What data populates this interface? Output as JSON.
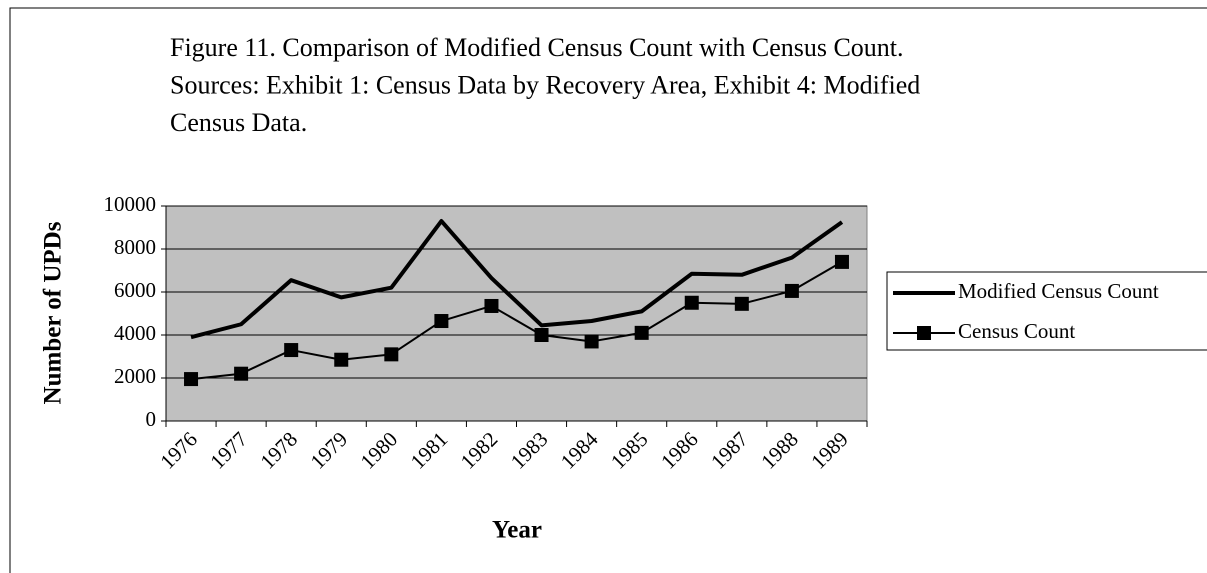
{
  "chart_data": {
    "type": "line",
    "title": [
      "Figure 11. Comparison of Modified Census Count with Census Count.",
      "Sources: Exhibit 1: Census Data by Recovery Area, Exhibit 4: Modified",
      "Census Data."
    ],
    "xlabel": "Year",
    "ylabel": "Number of UPDs",
    "categories": [
      "1976",
      "1977",
      "1978",
      "1979",
      "1980",
      "1981",
      "1982",
      "1983",
      "1984",
      "1985",
      "1986",
      "1987",
      "1988",
      "1989"
    ],
    "series": [
      {
        "name": "Modified Census Count",
        "color": "#000000",
        "marker": null,
        "values": [
          3900,
          4500,
          6550,
          5750,
          6200,
          9300,
          6650,
          4450,
          4650,
          5100,
          6850,
          6800,
          7600,
          9250
        ]
      },
      {
        "name": "Census Count",
        "color": "#000000",
        "marker": "square",
        "values": [
          1950,
          2200,
          3300,
          2850,
          3100,
          4650,
          5350,
          4000,
          3700,
          4100,
          5500,
          5450,
          6050,
          7400
        ]
      }
    ],
    "ylim": [
      0,
      10000
    ],
    "yticks": [
      0,
      2000,
      4000,
      6000,
      8000,
      10000
    ],
    "grid": true,
    "legend": "right",
    "plot_background": "#c0c0c0"
  }
}
